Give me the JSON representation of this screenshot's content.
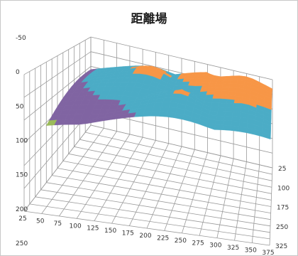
{
  "chart_data": {
    "type": "surface-3d",
    "title": "距離場",
    "xlabel": "",
    "ylabel": "",
    "zlabel": "",
    "x_ticks": [
      "25",
      "50",
      "75",
      "100",
      "125",
      "150",
      "175",
      "200",
      "225",
      "250",
      "275",
      "300",
      "325",
      "350",
      "375"
    ],
    "y_ticks": [
      "25",
      "100",
      "175",
      "250",
      "325"
    ],
    "z_ticks": [
      "-50",
      "0",
      "50",
      "100",
      "150",
      "200",
      "250"
    ],
    "zlim": [
      -50,
      250
    ],
    "z_reversed": true,
    "grid": true,
    "legend": "none",
    "band_colors": [
      "#f79646",
      "#4bacc6",
      "#8064a2",
      "#9bbb59",
      "#c0504d"
    ],
    "band_width": 50
  }
}
